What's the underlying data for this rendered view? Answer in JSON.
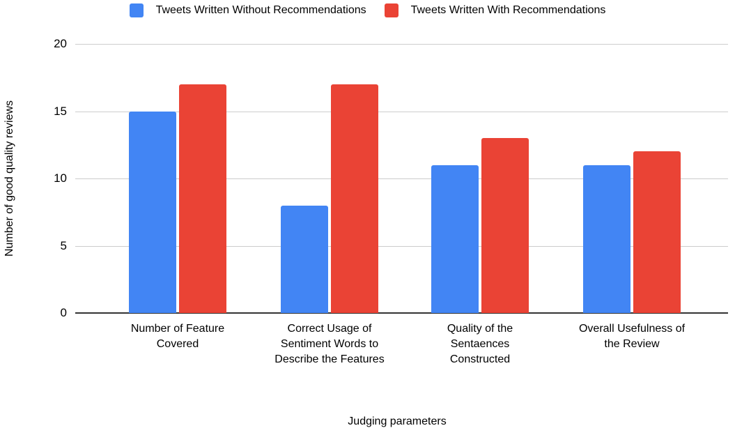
{
  "legend": {
    "items": [
      {
        "label": "Tweets Written Without Recommendations",
        "color": "#4285F4"
      },
      {
        "label": "Tweets Written With Recommendations",
        "color": "#EA4335"
      }
    ]
  },
  "chart_data": {
    "type": "bar",
    "title": "",
    "categories": [
      "Number of Feature Covered",
      "Correct Usage of Sentiment Words to Describe the Features",
      "Quality of the Sentaences Constructed",
      "Overall Usefulness of the Review"
    ],
    "series": [
      {
        "name": "Tweets Written Without Recommendations",
        "color": "#4285F4",
        "values": [
          15,
          8,
          11,
          11
        ]
      },
      {
        "name": "Tweets Written With Recommendations",
        "color": "#EA4335",
        "values": [
          17,
          17,
          13,
          12
        ]
      }
    ],
    "xlabel": "Judging parameters",
    "ylabel": "Number of good quality reviews",
    "ylim": [
      0,
      20
    ],
    "yticks": [
      0,
      5,
      10,
      15,
      20
    ],
    "grid": true,
    "legend_position": "top",
    "gridline_color": "#cccccc",
    "axis_line_color": "#333333",
    "text_color": "#000000",
    "background_color": "#ffffff"
  }
}
